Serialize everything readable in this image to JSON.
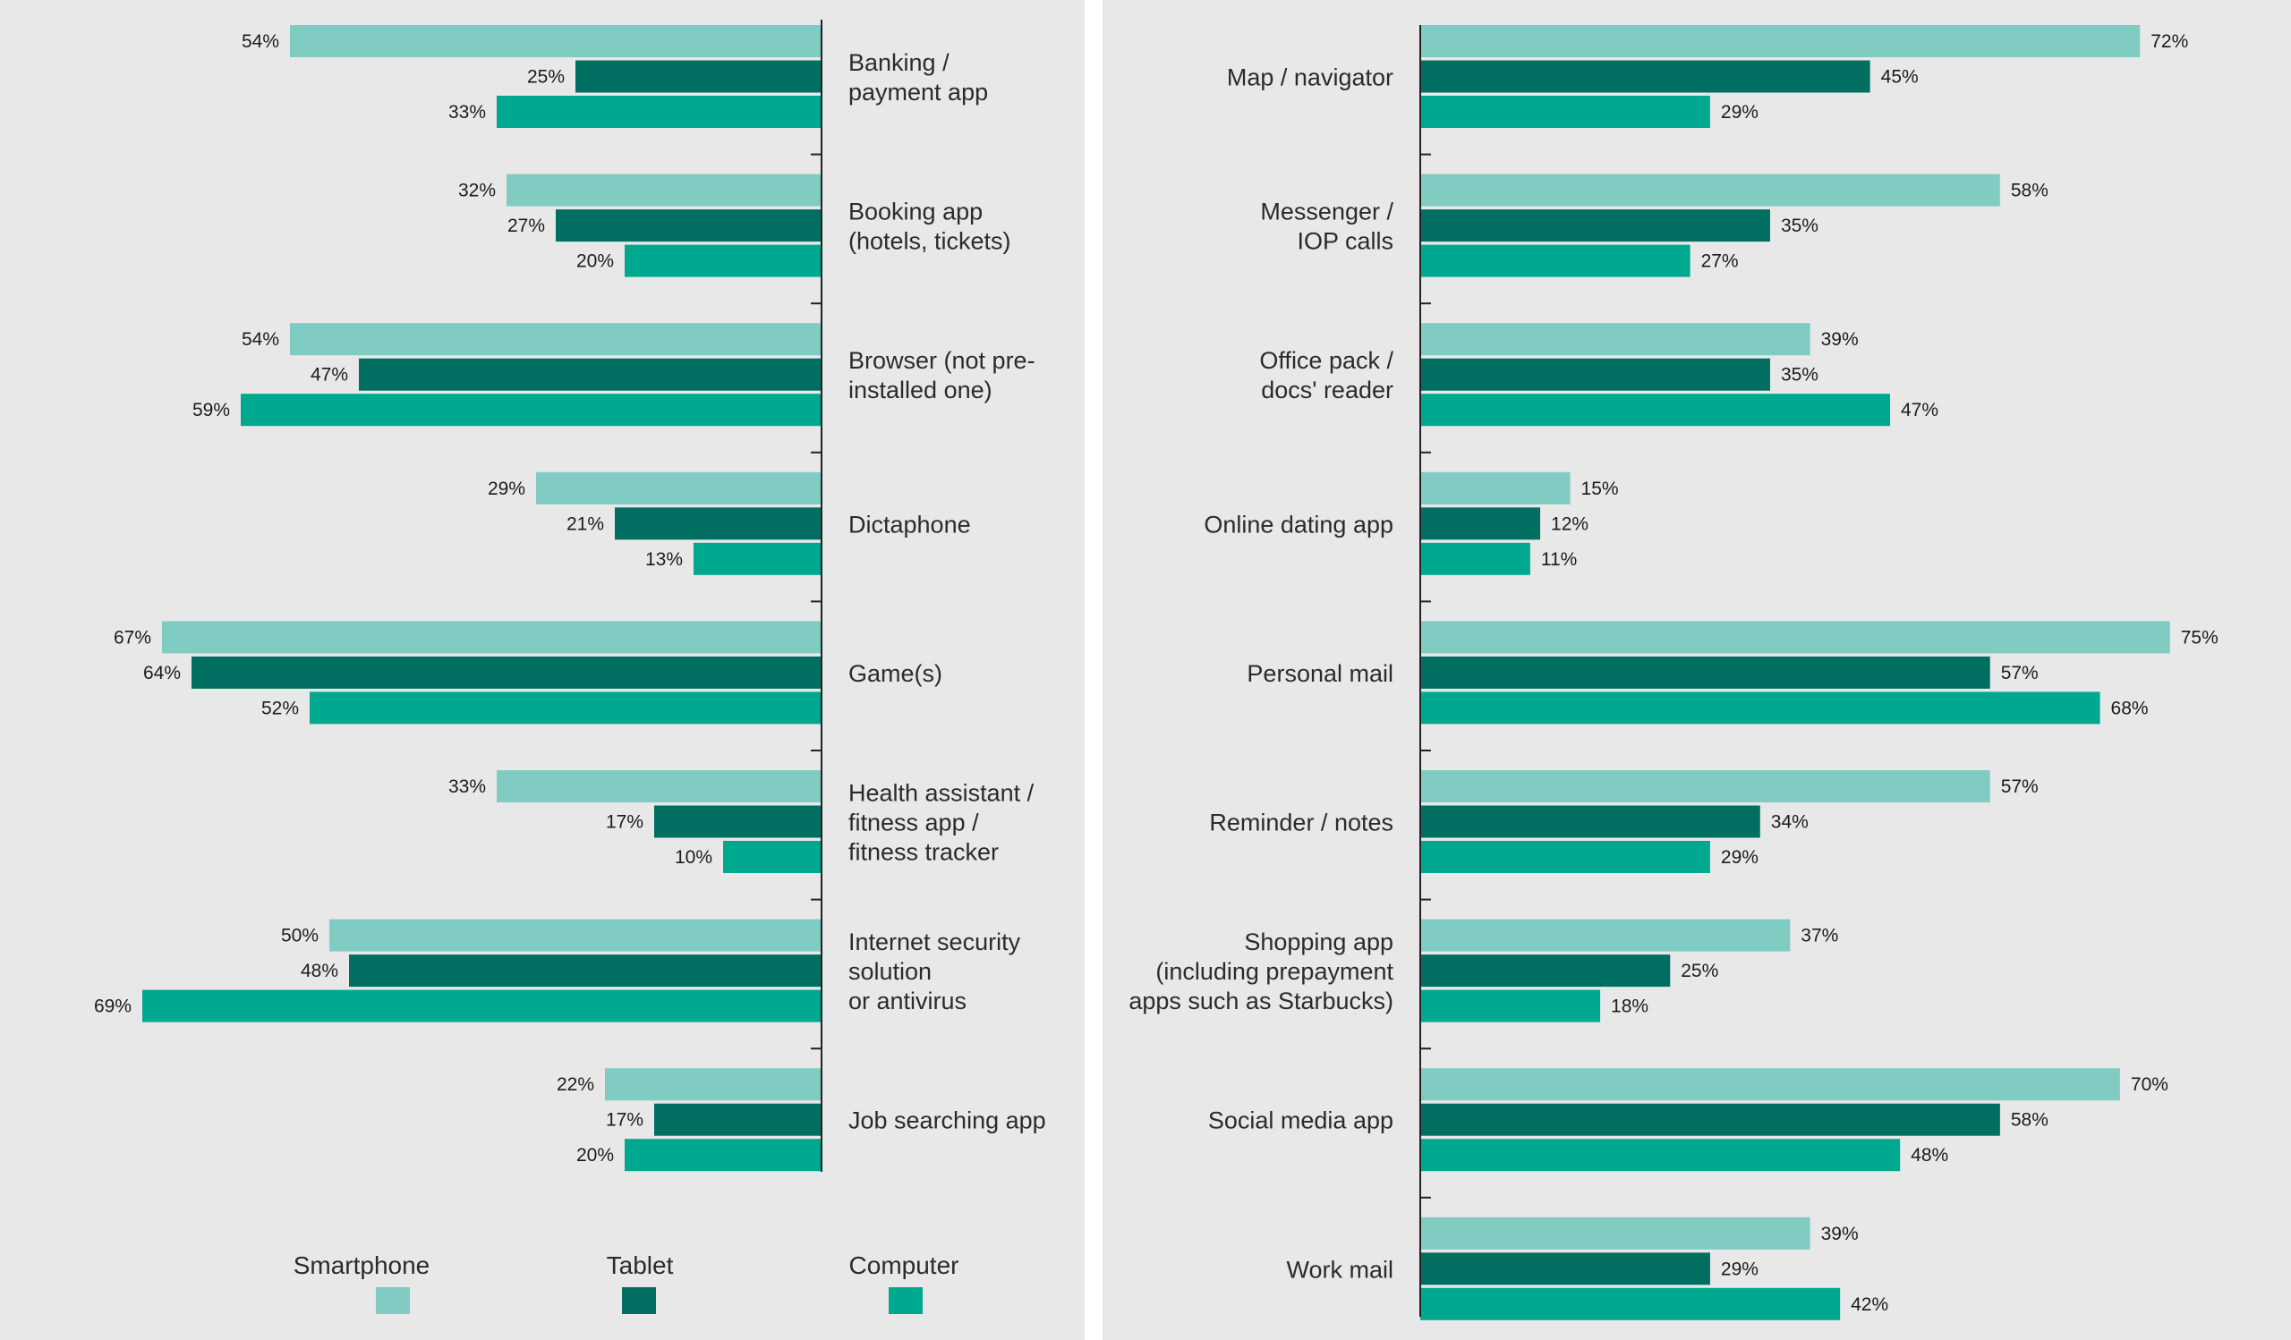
{
  "colors": {
    "smartphone": "#80ccc2",
    "tablet": "#006f62",
    "computer": "#00a88f",
    "axis": "#222222",
    "background": "#e8e8e8"
  },
  "legend": [
    {
      "key": "smartphone",
      "label": "Smartphone"
    },
    {
      "key": "tablet",
      "label": "Tablet"
    },
    {
      "key": "computer",
      "label": "Computer"
    }
  ],
  "chart_data": [
    {
      "type": "bar",
      "orientation": "horizontal",
      "direction": "right-to-left",
      "value_format": "percent",
      "xlim": [
        0,
        100
      ],
      "categories": [
        [
          "Banking /",
          "payment app"
        ],
        [
          "Booking app",
          "(hotels, tickets)"
        ],
        [
          "Browser (not pre-",
          "installed one)"
        ],
        [
          "Dictaphone"
        ],
        [
          "Game(s)"
        ],
        [
          "Health assistant /",
          "fitness app /",
          "fitness tracker"
        ],
        [
          "Internet security",
          "solution",
          "or antivirus"
        ],
        [
          "Job searching app"
        ]
      ],
      "series": [
        {
          "name": "Smartphone",
          "color_key": "smartphone",
          "values": [
            54,
            32,
            54,
            29,
            67,
            33,
            50,
            22
          ]
        },
        {
          "name": "Tablet",
          "color_key": "tablet",
          "values": [
            25,
            27,
            47,
            21,
            64,
            17,
            48,
            17
          ]
        },
        {
          "name": "Computer",
          "color_key": "computer",
          "values": [
            33,
            20,
            59,
            13,
            52,
            10,
            69,
            20
          ]
        }
      ]
    },
    {
      "type": "bar",
      "orientation": "horizontal",
      "direction": "left-to-right",
      "value_format": "percent",
      "xlim": [
        0,
        100
      ],
      "categories": [
        [
          "Map / navigator"
        ],
        [
          "Messenger /",
          "IOP calls"
        ],
        [
          "Office pack /",
          "docs' reader"
        ],
        [
          "Online dating app"
        ],
        [
          "Personal mail"
        ],
        [
          "Reminder / notes"
        ],
        [
          "Shopping app",
          "(including prepayment",
          "apps such as Starbucks)"
        ],
        [
          "Social media app"
        ],
        [
          "Work mail"
        ]
      ],
      "series": [
        {
          "name": "Smartphone",
          "color_key": "smartphone",
          "values": [
            72,
            58,
            39,
            15,
            75,
            57,
            37,
            70,
            39
          ]
        },
        {
          "name": "Tablet",
          "color_key": "tablet",
          "values": [
            45,
            35,
            35,
            12,
            57,
            34,
            25,
            58,
            29
          ]
        },
        {
          "name": "Computer",
          "color_key": "computer",
          "values": [
            29,
            27,
            47,
            11,
            68,
            29,
            18,
            48,
            42
          ]
        }
      ]
    }
  ]
}
